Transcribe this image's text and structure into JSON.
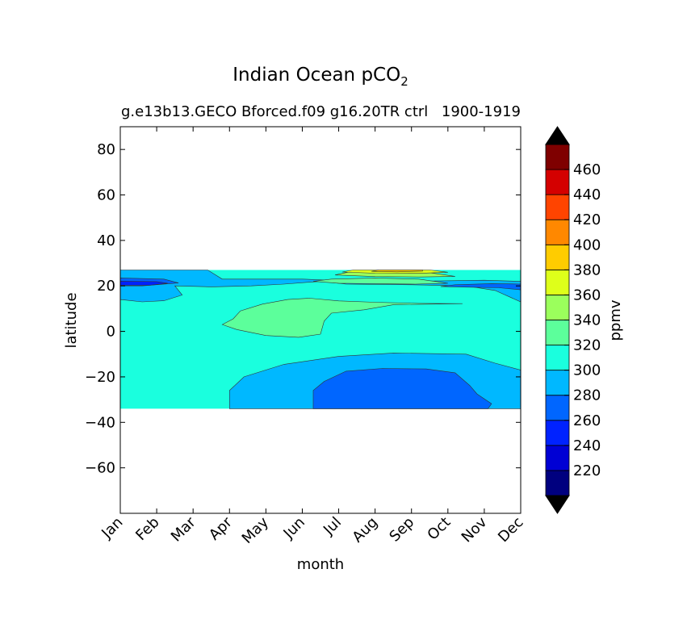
{
  "chart_data": {
    "type": "heatmap",
    "title_main": "Indian Ocean pCO",
    "title_sub": "2",
    "left_title": "g.e13b13.GECO Bforced.f09 g16.20TR ctrl",
    "right_title": "1900-1919",
    "xlabel": "month",
    "ylabel": "latitude",
    "x_categories": [
      "Jan",
      "Feb",
      "Mar",
      "Apr",
      "May",
      "Jun",
      "Jul",
      "Aug",
      "Sep",
      "Oct",
      "Nov",
      "Dec"
    ],
    "ylim": [
      -80,
      90
    ],
    "y_ticks": [
      80,
      60,
      40,
      20,
      0,
      -20,
      -40,
      -60
    ],
    "y_tick_labels": [
      "80",
      "60",
      "40",
      "20",
      "0",
      "−20",
      "−40",
      "−60"
    ],
    "data_lat_range": [
      -34,
      27
    ],
    "grid": false,
    "colorbar": {
      "label": "ppmv",
      "levels": [
        200,
        220,
        240,
        260,
        280,
        300,
        320,
        340,
        360,
        380,
        400,
        420,
        440,
        460,
        480
      ],
      "tick_values": [
        220,
        240,
        260,
        280,
        300,
        320,
        340,
        360,
        380,
        400,
        420,
        440,
        460
      ],
      "tick_labels": [
        "220",
        "240",
        "260",
        "280",
        "300",
        "320",
        "340",
        "360",
        "380",
        "400",
        "420",
        "440",
        "460"
      ],
      "colors": [
        "#00007f",
        "#0000d4",
        "#0022ff",
        "#0066ff",
        "#00b8ff",
        "#1affde",
        "#5cff9b",
        "#9bff5c",
        "#deff1a",
        "#ffcc00",
        "#ff8800",
        "#ff4400",
        "#d40000",
        "#7f0000"
      ],
      "extend_color": "#000000"
    },
    "regions": [
      {
        "name": "background-300-320",
        "value": 310,
        "points": [
          [
            1,
            27
          ],
          [
            12,
            27
          ],
          [
            12,
            -34
          ],
          [
            1,
            -34
          ]
        ]
      },
      {
        "name": "band-280-300-north",
        "value": 290,
        "points": [
          [
            1,
            27
          ],
          [
            3.4,
            27
          ],
          [
            3.8,
            23
          ],
          [
            6,
            23
          ],
          [
            7.2,
            22.2
          ],
          [
            9,
            22
          ],
          [
            11,
            22.5
          ],
          [
            12,
            22
          ],
          [
            12,
            13
          ],
          [
            11.3,
            18
          ],
          [
            10.5,
            20
          ],
          [
            9,
            20.5
          ],
          [
            7.2,
            20.8
          ],
          [
            6.5,
            22
          ],
          [
            5.5,
            20.8
          ],
          [
            4.6,
            20
          ],
          [
            3.5,
            19.6
          ],
          [
            2.5,
            20
          ],
          [
            2.7,
            16
          ],
          [
            2.2,
            13.5
          ],
          [
            1.6,
            13
          ],
          [
            1,
            14
          ]
        ]
      },
      {
        "name": "band-260-280-north-left",
        "value": 270,
        "points": [
          [
            1,
            23.5
          ],
          [
            2.2,
            23
          ],
          [
            2.6,
            21.3
          ],
          [
            1.6,
            20
          ],
          [
            1,
            20
          ]
        ]
      },
      {
        "name": "band-260-280-north-right",
        "value": 270,
        "points": [
          [
            10.2,
            20.5
          ],
          [
            11.2,
            21
          ],
          [
            12,
            20.8
          ],
          [
            12,
            18.3
          ],
          [
            11.4,
            19.2
          ],
          [
            10.7,
            19.4
          ],
          [
            9.8,
            19.7
          ]
        ]
      },
      {
        "name": "band-240-260-north-left",
        "value": 250,
        "points": [
          [
            1,
            22.1
          ],
          [
            2.0,
            21.9
          ],
          [
            2.3,
            21.2
          ],
          [
            1.8,
            20.3
          ],
          [
            1,
            20.3
          ]
        ]
      },
      {
        "name": "patch-320-340-upper",
        "value": 330,
        "points": [
          [
            6.3,
            22
          ],
          [
            6.8,
            23
          ],
          [
            8,
            23.5
          ],
          [
            9.2,
            23
          ],
          [
            10,
            21.2
          ],
          [
            9.1,
            20.8
          ],
          [
            7.8,
            21
          ],
          [
            7,
            21.2
          ]
        ]
      },
      {
        "name": "patch-340-360-upper",
        "value": 350,
        "points": [
          [
            6.9,
            24.8
          ],
          [
            7.3,
            26.2
          ],
          [
            8.5,
            26.7
          ],
          [
            9.5,
            25.8
          ],
          [
            10.2,
            24.2
          ],
          [
            9.2,
            23.9
          ],
          [
            8,
            24.1
          ]
        ]
      },
      {
        "name": "patch-360-380-upper",
        "value": 370,
        "points": [
          [
            7.1,
            26.1
          ],
          [
            7.4,
            27
          ],
          [
            9.5,
            27
          ],
          [
            10,
            26
          ],
          [
            9.2,
            25.5
          ],
          [
            8,
            25.6
          ]
        ]
      },
      {
        "name": "patch-380-400-upper",
        "value": 390,
        "points": [
          [
            7.9,
            26.4
          ],
          [
            8.1,
            27
          ],
          [
            9.3,
            27
          ],
          [
            9.3,
            26.5
          ],
          [
            8.6,
            26.2
          ]
        ]
      },
      {
        "name": "patch-320-340-mid",
        "value": 330,
        "points": [
          [
            3.8,
            3
          ],
          [
            4.1,
            5.5
          ],
          [
            4.3,
            9
          ],
          [
            4.9,
            12
          ],
          [
            5.6,
            14
          ],
          [
            6.2,
            14.6
          ],
          [
            7,
            13.4
          ],
          [
            8,
            12.8
          ],
          [
            9.2,
            12.3
          ],
          [
            10.4,
            12.2
          ],
          [
            8.5,
            11.7
          ],
          [
            7.7,
            9.5
          ],
          [
            6.8,
            8
          ],
          [
            6.6,
            4.5
          ],
          [
            6.5,
            -1.2
          ],
          [
            5.9,
            -2.6
          ],
          [
            5,
            -1.8
          ],
          [
            4.2,
            0.8
          ]
        ]
      },
      {
        "name": "band-280-300-south",
        "value": 290,
        "points": [
          [
            4,
            -34
          ],
          [
            4,
            -26
          ],
          [
            4.4,
            -20
          ],
          [
            5.5,
            -14.5
          ],
          [
            7,
            -11
          ],
          [
            8.5,
            -9.5
          ],
          [
            10.5,
            -10
          ],
          [
            11.3,
            -14
          ],
          [
            12,
            -17
          ],
          [
            12,
            -34
          ]
        ]
      },
      {
        "name": "band-260-280-south",
        "value": 270,
        "points": [
          [
            6.3,
            -34
          ],
          [
            6.3,
            -26
          ],
          [
            6.6,
            -22
          ],
          [
            7.2,
            -17.5
          ],
          [
            8.2,
            -16.3
          ],
          [
            9.4,
            -16.5
          ],
          [
            10.2,
            -18.2
          ],
          [
            10.6,
            -23.8
          ],
          [
            10.8,
            -27.5
          ],
          [
            11.2,
            -31.8
          ],
          [
            11.1,
            -34
          ]
        ]
      }
    ]
  }
}
